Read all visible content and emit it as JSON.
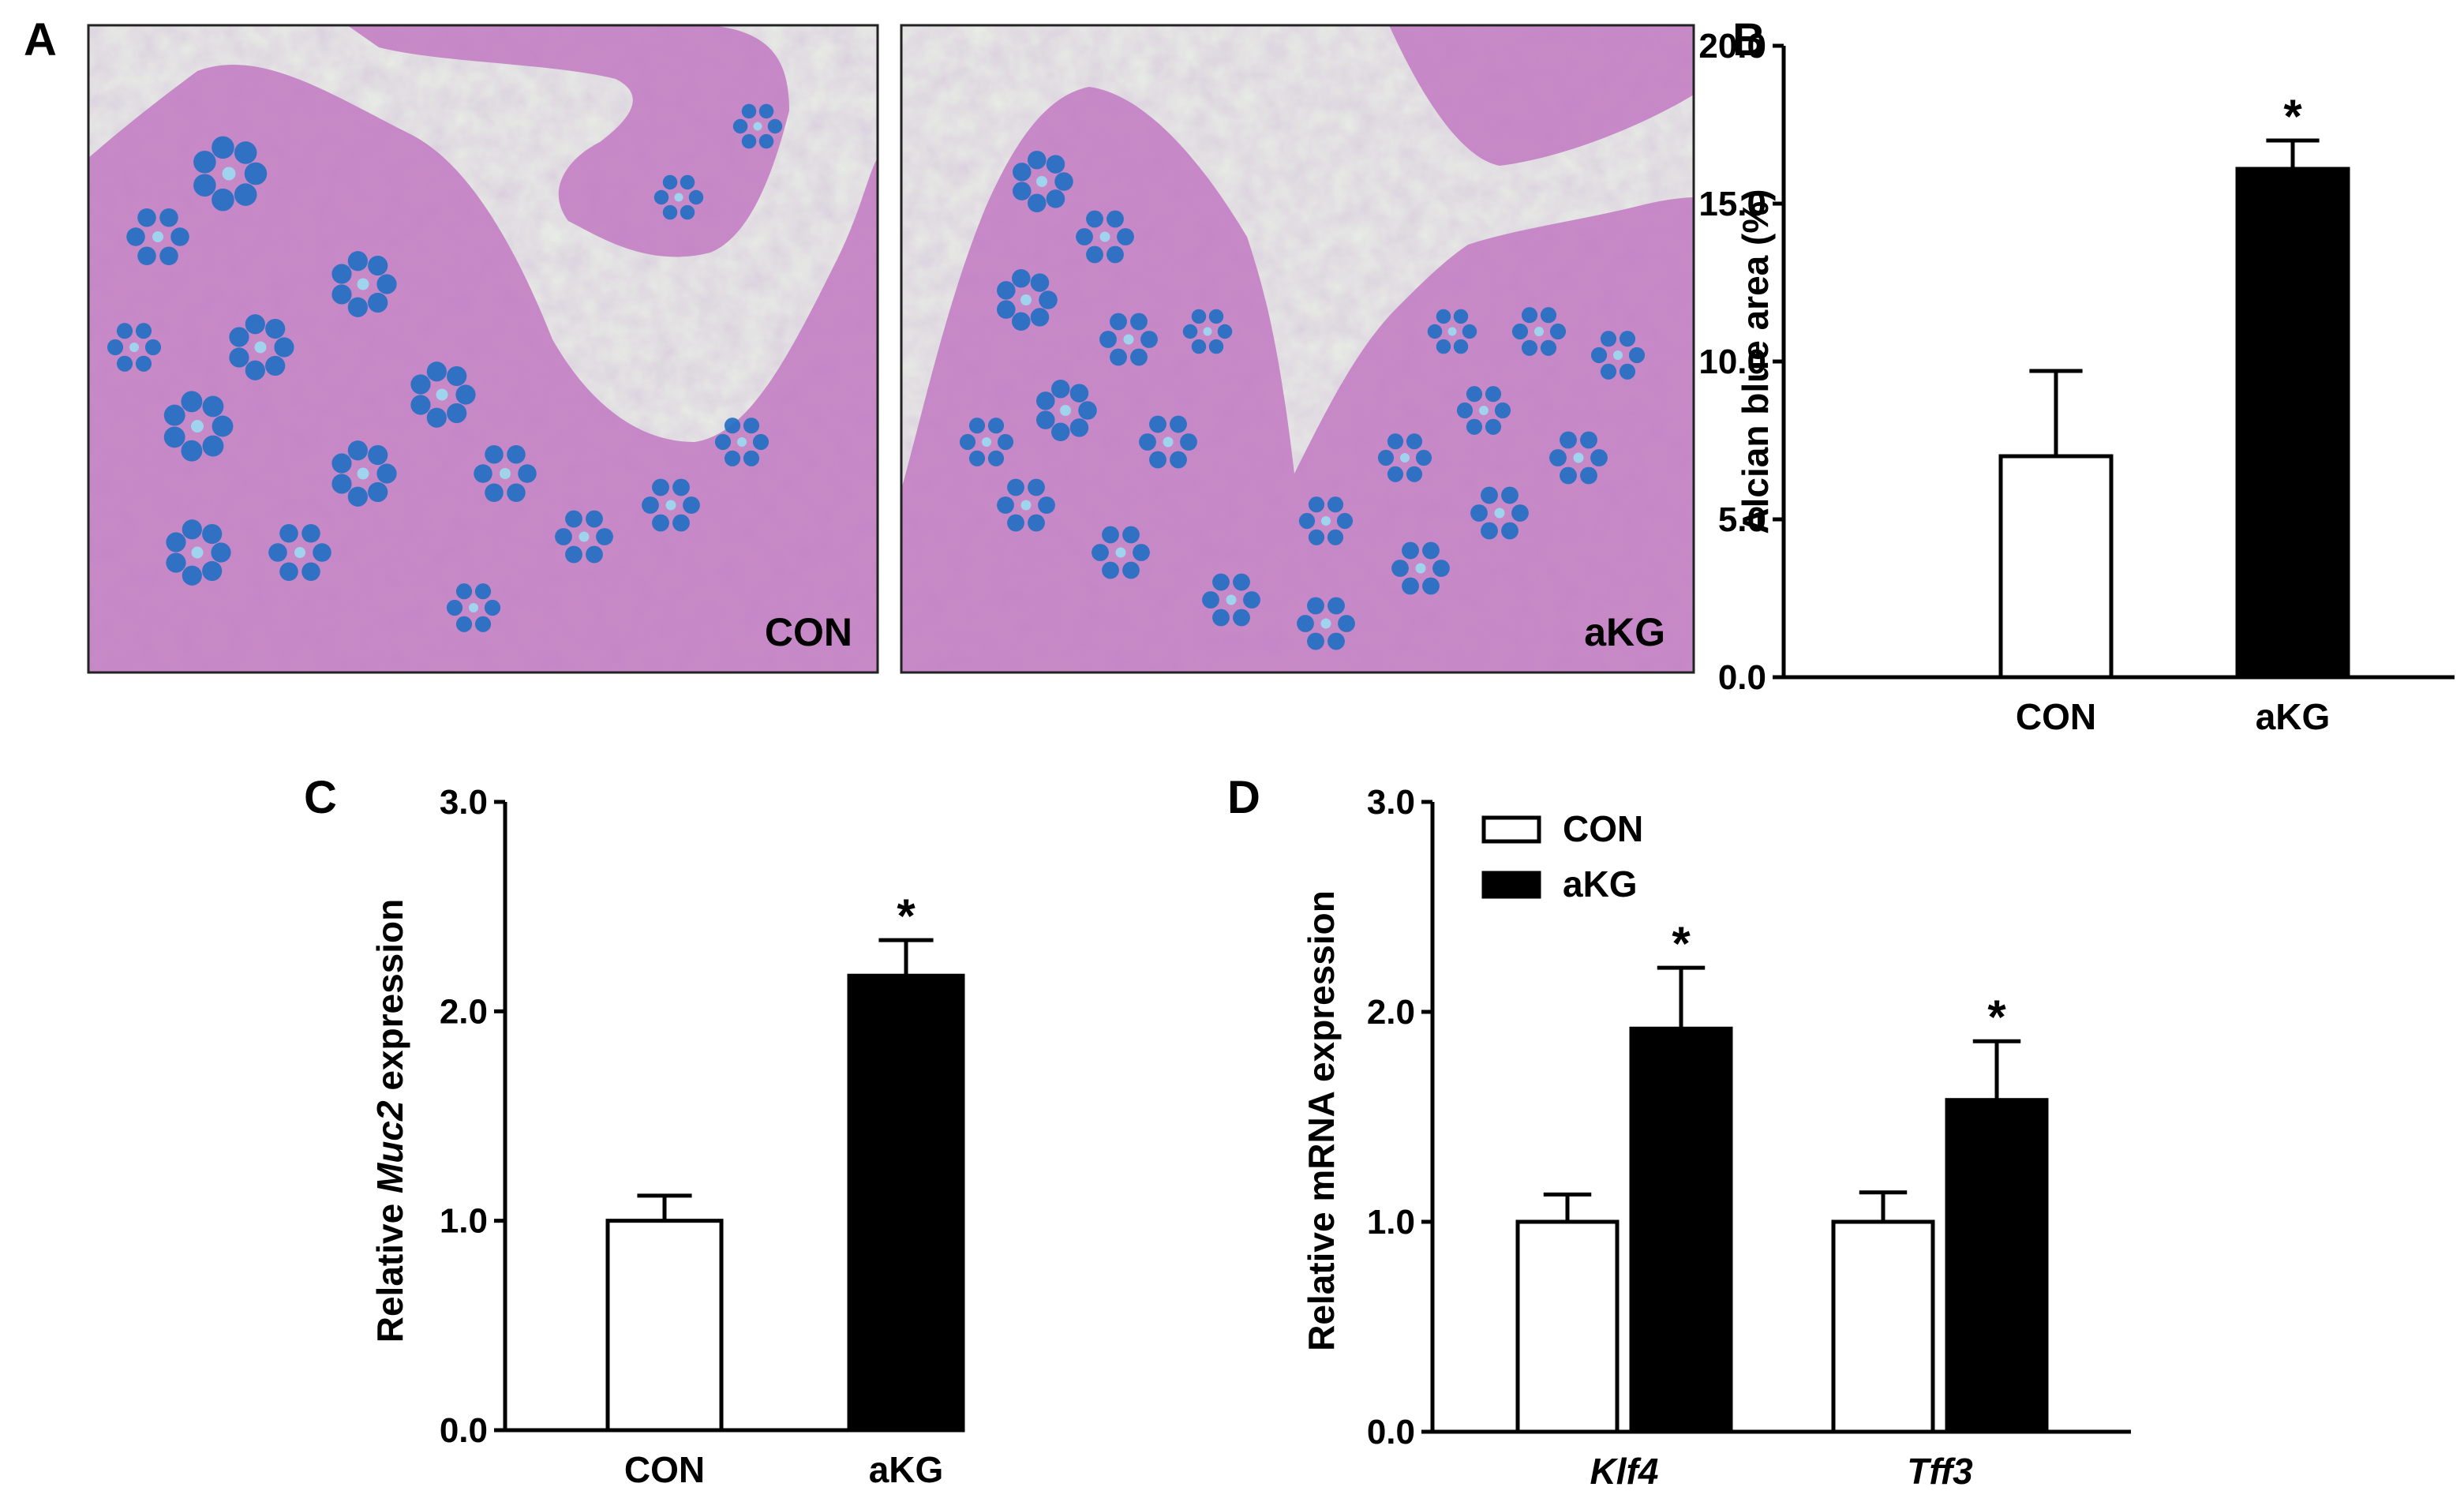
{
  "panels": {
    "A": {
      "letter": "A",
      "images": [
        {
          "label": "CON",
          "stain_bg": "#e9efe6",
          "tissue": "#c98ac6",
          "goblet": "#1f6fc2"
        },
        {
          "label": "aKG",
          "stain_bg": "#e9efe6",
          "tissue": "#c98ac6",
          "goblet": "#1f6fc2"
        }
      ]
    },
    "B": {
      "letter": "B"
    },
    "C": {
      "letter": "C"
    },
    "D": {
      "letter": "D"
    }
  },
  "chart_data": [
    {
      "id": "B",
      "type": "bar",
      "categories": [
        "CON",
        "aKG"
      ],
      "series": [
        {
          "values": [
            7.0,
            16.1
          ],
          "errors": [
            2.7,
            0.9
          ],
          "colors": [
            "#ffffff",
            "#000000"
          ]
        }
      ],
      "significance": [
        "",
        "*"
      ],
      "ylabel": "Alcian blue area (%)",
      "ylim": [
        0,
        20
      ],
      "yticks": [
        "0.0",
        "5.0",
        "10.0",
        "15.0",
        "20.0"
      ],
      "grid": false
    },
    {
      "id": "C",
      "type": "bar",
      "categories": [
        "CON",
        "aKG"
      ],
      "series": [
        {
          "values": [
            1.0,
            2.17
          ],
          "errors": [
            0.12,
            0.17
          ],
          "colors": [
            "#ffffff",
            "#000000"
          ]
        }
      ],
      "significance": [
        "",
        "*"
      ],
      "ylabel": {
        "pre": "Relative ",
        "italic": "Muc2",
        "post": " expression"
      },
      "ylim": [
        0,
        3
      ],
      "yticks": [
        "0.0",
        "1.0",
        "2.0",
        "3.0"
      ],
      "grid": false
    },
    {
      "id": "D",
      "type": "bar",
      "categories": [
        "Klf4",
        "Tff3"
      ],
      "categories_italic": true,
      "series": [
        {
          "name": "CON",
          "values": [
            1.0,
            1.0
          ],
          "errors": [
            0.13,
            0.14
          ],
          "color": "#ffffff"
        },
        {
          "name": "aKG",
          "values": [
            1.92,
            1.58
          ],
          "errors": [
            0.29,
            0.28
          ],
          "color": "#000000"
        }
      ],
      "significance": [
        [
          "",
          "*"
        ],
        [
          "",
          "*"
        ]
      ],
      "ylabel": "Relative mRNA expression",
      "ylim": [
        0,
        3
      ],
      "yticks": [
        "0.0",
        "1.0",
        "2.0",
        "3.0"
      ],
      "legend": "top-left",
      "grid": false
    }
  ]
}
